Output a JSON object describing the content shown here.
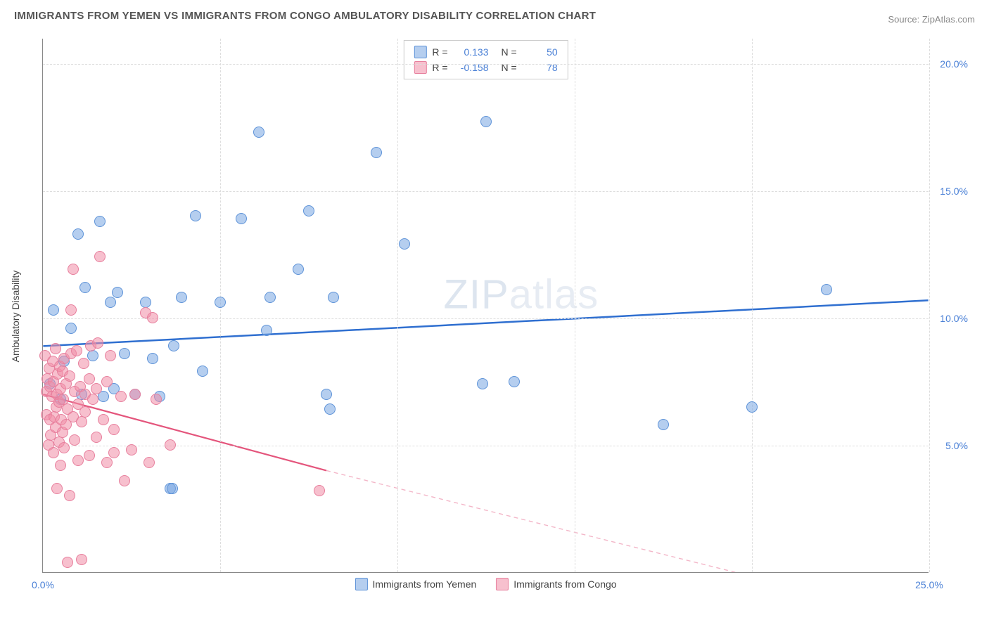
{
  "title": "IMMIGRANTS FROM YEMEN VS IMMIGRANTS FROM CONGO AMBULATORY DISABILITY CORRELATION CHART",
  "source": "Source: ZipAtlas.com",
  "watermark_bold": "ZIP",
  "watermark_thin": "atlas",
  "chart": {
    "type": "scatter",
    "xlim": [
      0,
      25
    ],
    "ylim": [
      0,
      21
    ],
    "x_ticks": [
      0,
      5,
      10,
      15,
      20,
      25
    ],
    "y_ticks": [
      5,
      10,
      15,
      20
    ],
    "x_tick_labels": [
      "0.0%",
      "",
      "",
      "",
      "",
      "25.0%"
    ],
    "y_tick_labels": [
      "5.0%",
      "10.0%",
      "15.0%",
      "20.0%"
    ],
    "y_axis_label": "Ambulatory Disability",
    "grid_color": "#dddddd",
    "background": "#ffffff",
    "axis_color": "#888888",
    "tick_label_color": "#4a80d6",
    "series": [
      {
        "name": "Immigrants from Yemen",
        "color_fill": "rgba(120,165,225,0.55)",
        "color_stroke": "#5e93d8",
        "R": "0.133",
        "N": "50",
        "trend": {
          "x1": 0,
          "y1": 8.9,
          "x2": 25,
          "y2": 10.7,
          "color": "#2f6fd0",
          "width": 2.5,
          "dash": "none"
        },
        "points": [
          [
            0.2,
            7.4
          ],
          [
            0.3,
            10.3
          ],
          [
            0.5,
            6.8
          ],
          [
            0.6,
            8.3
          ],
          [
            0.8,
            9.6
          ],
          [
            1.0,
            13.3
          ],
          [
            1.1,
            7.0
          ],
          [
            1.2,
            11.2
          ],
          [
            1.4,
            8.5
          ],
          [
            1.6,
            13.8
          ],
          [
            1.7,
            6.9
          ],
          [
            1.9,
            10.6
          ],
          [
            2.0,
            7.2
          ],
          [
            2.1,
            11.0
          ],
          [
            2.3,
            8.6
          ],
          [
            2.6,
            7.0
          ],
          [
            2.9,
            10.6
          ],
          [
            3.1,
            8.4
          ],
          [
            3.3,
            6.9
          ],
          [
            3.6,
            3.3
          ],
          [
            3.65,
            3.3
          ],
          [
            3.7,
            8.9
          ],
          [
            3.9,
            10.8
          ],
          [
            4.3,
            14.0
          ],
          [
            4.5,
            7.9
          ],
          [
            5.0,
            10.6
          ],
          [
            5.6,
            13.9
          ],
          [
            6.1,
            17.3
          ],
          [
            6.3,
            9.5
          ],
          [
            6.4,
            10.8
          ],
          [
            7.2,
            11.9
          ],
          [
            7.5,
            14.2
          ],
          [
            8.0,
            7.0
          ],
          [
            8.1,
            6.4
          ],
          [
            8.2,
            10.8
          ],
          [
            9.4,
            16.5
          ],
          [
            10.2,
            12.9
          ],
          [
            12.4,
            7.4
          ],
          [
            12.5,
            17.7
          ],
          [
            13.3,
            7.5
          ],
          [
            17.5,
            5.8
          ],
          [
            20.0,
            6.5
          ],
          [
            22.1,
            11.1
          ]
        ]
      },
      {
        "name": "Immigrants from Congo",
        "color_fill": "rgba(240,140,165,0.55)",
        "color_stroke": "#e77f9d",
        "R": "-0.158",
        "N": "78",
        "trend_solid": {
          "x1": 0,
          "y1": 7.0,
          "x2": 8,
          "y2": 4.0,
          "color": "#e4557c",
          "width": 2.2
        },
        "trend_dash": {
          "x1": 8,
          "y1": 4.0,
          "x2": 23,
          "y2": -1.2,
          "color": "#f3b6c8",
          "width": 1.4
        },
        "points": [
          [
            0.05,
            8.5
          ],
          [
            0.1,
            7.1
          ],
          [
            0.1,
            6.2
          ],
          [
            0.12,
            7.6
          ],
          [
            0.15,
            5.0
          ],
          [
            0.18,
            8.0
          ],
          [
            0.2,
            6.0
          ],
          [
            0.2,
            7.3
          ],
          [
            0.22,
            5.4
          ],
          [
            0.25,
            6.9
          ],
          [
            0.28,
            8.3
          ],
          [
            0.3,
            4.7
          ],
          [
            0.3,
            7.5
          ],
          [
            0.32,
            6.1
          ],
          [
            0.35,
            5.7
          ],
          [
            0.35,
            8.8
          ],
          [
            0.38,
            6.5
          ],
          [
            0.4,
            7.0
          ],
          [
            0.4,
            3.3
          ],
          [
            0.42,
            7.8
          ],
          [
            0.45,
            5.1
          ],
          [
            0.45,
            6.7
          ],
          [
            0.48,
            8.1
          ],
          [
            0.5,
            4.2
          ],
          [
            0.5,
            7.2
          ],
          [
            0.52,
            6.0
          ],
          [
            0.55,
            5.5
          ],
          [
            0.55,
            7.9
          ],
          [
            0.58,
            6.8
          ],
          [
            0.6,
            4.9
          ],
          [
            0.6,
            8.4
          ],
          [
            0.65,
            7.4
          ],
          [
            0.65,
            5.8
          ],
          [
            0.7,
            0.4
          ],
          [
            0.7,
            6.4
          ],
          [
            0.75,
            7.7
          ],
          [
            0.75,
            3.0
          ],
          [
            0.8,
            8.6
          ],
          [
            0.8,
            10.3
          ],
          [
            0.85,
            11.9
          ],
          [
            0.85,
            6.1
          ],
          [
            0.9,
            7.1
          ],
          [
            0.9,
            5.2
          ],
          [
            0.95,
            8.7
          ],
          [
            1.0,
            6.6
          ],
          [
            1.0,
            4.4
          ],
          [
            1.05,
            7.3
          ],
          [
            1.1,
            0.5
          ],
          [
            1.1,
            5.9
          ],
          [
            1.15,
            8.2
          ],
          [
            1.2,
            7.0
          ],
          [
            1.2,
            6.3
          ],
          [
            1.3,
            7.6
          ],
          [
            1.3,
            4.6
          ],
          [
            1.35,
            8.9
          ],
          [
            1.4,
            6.8
          ],
          [
            1.5,
            7.2
          ],
          [
            1.5,
            5.3
          ],
          [
            1.55,
            9.0
          ],
          [
            1.6,
            12.4
          ],
          [
            1.7,
            6.0
          ],
          [
            1.8,
            7.5
          ],
          [
            1.8,
            4.3
          ],
          [
            1.9,
            8.5
          ],
          [
            2.0,
            5.6
          ],
          [
            2.0,
            4.7
          ],
          [
            2.2,
            6.9
          ],
          [
            2.3,
            3.6
          ],
          [
            2.5,
            4.8
          ],
          [
            2.6,
            7.0
          ],
          [
            2.9,
            10.2
          ],
          [
            3.0,
            4.3
          ],
          [
            3.1,
            10.0
          ],
          [
            3.2,
            6.8
          ],
          [
            3.6,
            5.0
          ],
          [
            7.8,
            3.2
          ]
        ]
      }
    ]
  },
  "stats_box": {
    "rows": [
      {
        "swatch_fill": "rgba(120,165,225,0.55)",
        "swatch_stroke": "#5e93d8",
        "R_label": "R =",
        "R": "0.133",
        "N_label": "N =",
        "N": "50"
      },
      {
        "swatch_fill": "rgba(240,140,165,0.55)",
        "swatch_stroke": "#e77f9d",
        "R_label": "R =",
        "R": "-0.158",
        "N_label": "N =",
        "N": "78"
      }
    ]
  },
  "bottom_legend": [
    {
      "swatch_fill": "rgba(120,165,225,0.55)",
      "swatch_stroke": "#5e93d8",
      "label": "Immigrants from Yemen"
    },
    {
      "swatch_fill": "rgba(240,140,165,0.55)",
      "swatch_stroke": "#e77f9d",
      "label": "Immigrants from Congo"
    }
  ]
}
